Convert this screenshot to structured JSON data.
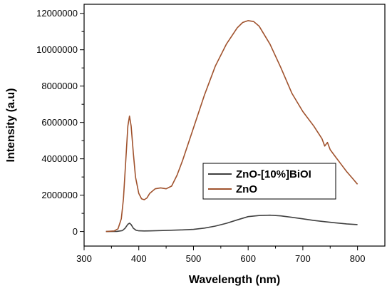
{
  "chart_data": {
    "type": "line",
    "xlabel": "Wavelength (nm)",
    "ylabel": "Intensity (a.u)",
    "xlim": [
      300,
      850
    ],
    "ylim": [
      -800000,
      12500000
    ],
    "x_ticks": [
      300,
      400,
      500,
      600,
      700,
      800
    ],
    "x_tick_labels": [
      "300",
      "400",
      "500",
      "600",
      "700",
      "800"
    ],
    "y_ticks": [
      0,
      2000000,
      4000000,
      6000000,
      8000000,
      10000000,
      12000000
    ],
    "y_tick_labels": [
      "0",
      "2000000",
      "4000000",
      "6000000",
      "8000000",
      "10000000",
      "12000000"
    ],
    "grid": false,
    "legend_position": "center-right",
    "series": [
      {
        "name": "ZnO-[10%]BiOI",
        "color": "#404040",
        "x": [
          340,
          360,
          370,
          375,
          380,
          383,
          386,
          390,
          395,
          400,
          410,
          420,
          450,
          480,
          500,
          520,
          540,
          560,
          580,
          600,
          620,
          640,
          660,
          680,
          700,
          720,
          740,
          760,
          780,
          800
        ],
        "y": [
          0,
          10000,
          50000,
          180000,
          400000,
          460000,
          380000,
          180000,
          70000,
          40000,
          30000,
          35000,
          60000,
          90000,
          120000,
          190000,
          300000,
          450000,
          640000,
          820000,
          880000,
          900000,
          860000,
          780000,
          700000,
          610000,
          540000,
          480000,
          420000,
          380000
        ]
      },
      {
        "name": "ZnO",
        "color": "#a0522d",
        "x": [
          340,
          355,
          362,
          368,
          372,
          376,
          380,
          383,
          386,
          390,
          394,
          400,
          405,
          410,
          415,
          420,
          430,
          440,
          450,
          460,
          470,
          480,
          500,
          520,
          540,
          560,
          580,
          590,
          600,
          610,
          620,
          640,
          660,
          680,
          700,
          720,
          735,
          740,
          745,
          750,
          760,
          770,
          780,
          790,
          800
        ],
        "y": [
          0,
          30000,
          150000,
          700000,
          1800000,
          3800000,
          5800000,
          6350000,
          5800000,
          4300000,
          3000000,
          2100000,
          1800000,
          1750000,
          1850000,
          2100000,
          2350000,
          2400000,
          2350000,
          2500000,
          3100000,
          3900000,
          5700000,
          7500000,
          9100000,
          10300000,
          11200000,
          11500000,
          11600000,
          11550000,
          11300000,
          10300000,
          9000000,
          7600000,
          6600000,
          5800000,
          5100000,
          4700000,
          4900000,
          4500000,
          4100000,
          3700000,
          3300000,
          2950000,
          2600000
        ]
      }
    ]
  }
}
